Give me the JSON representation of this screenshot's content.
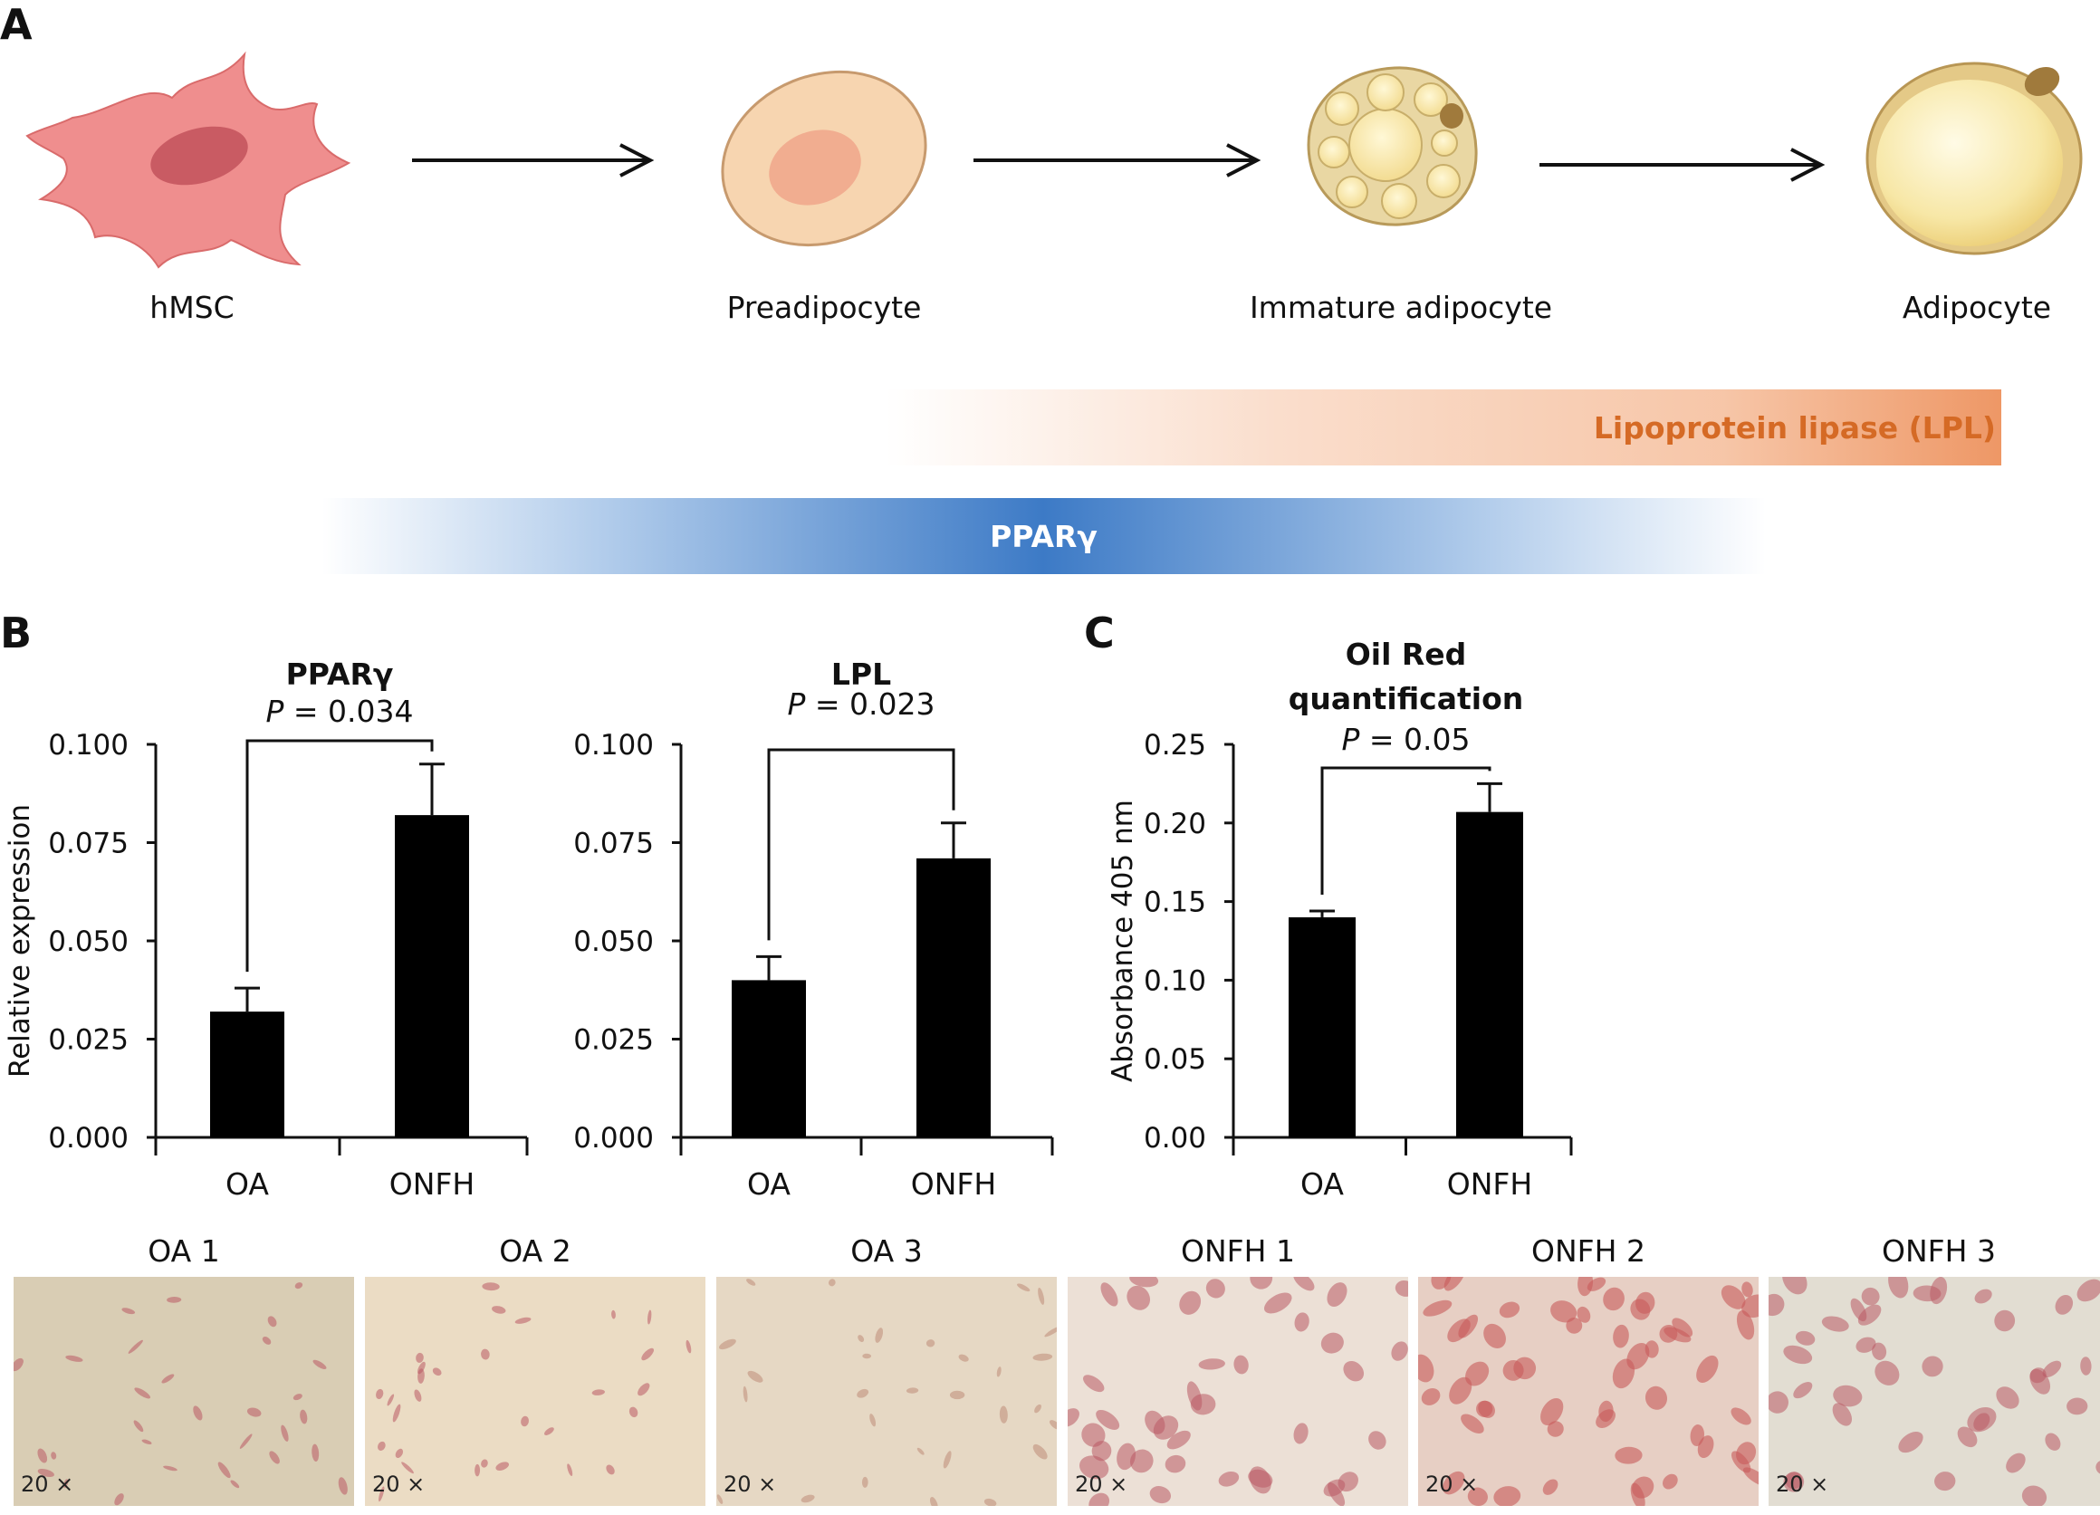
{
  "panels": {
    "a": "A",
    "b": "B",
    "c": "C"
  },
  "pathway": {
    "stages": [
      {
        "name": "hMSC",
        "icon": "mesenchymal-stem-cell-icon"
      },
      {
        "name": "Preadipocyte",
        "icon": "preadipocyte-icon"
      },
      {
        "name": "Immature adipocyte",
        "icon": "immature-adipocyte-icon"
      },
      {
        "name": "Adipocyte",
        "icon": "adipocyte-icon"
      }
    ],
    "lpl_band": {
      "label": "Lipoprotein lipase (LPL)",
      "color": "#e07b3c"
    },
    "ppar_band": {
      "label": "PPARγ",
      "color": "#3b78c1"
    }
  },
  "chart_data": [
    {
      "type": "bar",
      "title": "PPARγ",
      "p_value": {
        "label": "P",
        "value": "= 0.034"
      },
      "ylabel": "Relative expression",
      "categories": [
        "OA",
        "ONFH"
      ],
      "values": [
        0.032,
        0.082
      ],
      "errors": [
        0.006,
        0.013
      ],
      "ylim": [
        0,
        0.1
      ],
      "yticks": [
        "0.000",
        "0.025",
        "0.050",
        "0.075",
        "0.100"
      ]
    },
    {
      "type": "bar",
      "title": "LPL",
      "p_value": {
        "label": "P",
        "value": "= 0.023"
      },
      "ylabel": "",
      "categories": [
        "OA",
        "ONFH"
      ],
      "values": [
        0.04,
        0.071
      ],
      "errors": [
        0.006,
        0.009
      ],
      "ylim": [
        0,
        0.1
      ],
      "yticks": [
        "0.000",
        "0.025",
        "0.050",
        "0.075",
        "0.100"
      ]
    },
    {
      "type": "bar",
      "title": "Oil Red quantification",
      "title_lines": [
        "Oil Red",
        "quantification"
      ],
      "p_value": {
        "label": "P",
        "value": "= 0.05"
      },
      "ylabel": "Absorbance 405 nm",
      "categories": [
        "OA",
        "ONFH"
      ],
      "values": [
        0.14,
        0.207
      ],
      "errors": [
        0.004,
        0.018
      ],
      "ylim": [
        0,
        0.25
      ],
      "yticks": [
        "0.00",
        "0.05",
        "0.10",
        "0.15",
        "0.20",
        "0.25"
      ]
    }
  ],
  "micrographs": [
    {
      "label": "OA 1",
      "mag": "20 ×",
      "bg": "#d9cdb4",
      "stain": "sparse"
    },
    {
      "label": "OA 2",
      "mag": "20 ×",
      "bg": "#ebdcc4",
      "stain": "sparse"
    },
    {
      "label": "OA 3",
      "mag": "20 ×",
      "bg": "#e6d8c4",
      "stain": "fibroblast"
    },
    {
      "label": "ONFH 1",
      "mag": "20 ×",
      "bg": "#ece0d6",
      "stain": "moderate"
    },
    {
      "label": "ONFH 2",
      "mag": "20 ×",
      "bg": "#e7cfc4",
      "stain": "dense"
    },
    {
      "label": "ONFH 3",
      "mag": "20 ×",
      "bg": "#e2ddd2",
      "stain": "moderate"
    }
  ]
}
